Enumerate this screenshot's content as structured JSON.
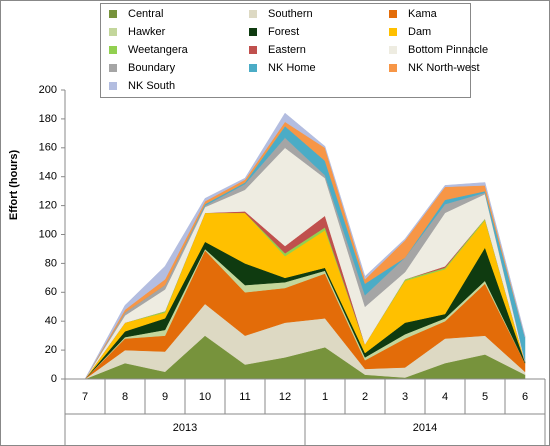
{
  "chart_data": {
    "type": "stacked_area",
    "y_label": "Effort  (hours)",
    "categories": [
      "7",
      "8",
      "9",
      "10",
      "11",
      "12",
      "1",
      "2",
      "3",
      "4",
      "5",
      "6"
    ],
    "x_groups": [
      {
        "label": "2013",
        "from": 0,
        "to": 5
      },
      {
        "label": "2014",
        "from": 6,
        "to": 11
      }
    ],
    "ylim": [
      0,
      200
    ],
    "yticks": [
      0,
      20,
      40,
      60,
      80,
      100,
      120,
      140,
      160,
      180,
      200
    ],
    "series": [
      {
        "name": "Central",
        "color": "#77933c",
        "values": [
          0,
          11,
          5,
          30,
          10,
          15,
          22,
          3,
          1,
          11,
          17,
          3
        ]
      },
      {
        "name": "Southern",
        "color": "#ddd9c3",
        "values": [
          0,
          9,
          14,
          22,
          20,
          24,
          20,
          4,
          7,
          17,
          13,
          2
        ]
      },
      {
        "name": "Kama",
        "color": "#e36c09",
        "values": [
          0,
          8,
          11,
          37,
          30,
          24,
          31,
          6,
          20,
          12,
          36,
          6
        ]
      },
      {
        "name": "Hawker",
        "color": "#c3d69b",
        "values": [
          0,
          1,
          4,
          1,
          5,
          4,
          2,
          2,
          3,
          2,
          2,
          0
        ]
      },
      {
        "name": "Forest",
        "color": "#0f3b10",
        "values": [
          0,
          4,
          8,
          5,
          15,
          3,
          2,
          3,
          8,
          3,
          23,
          1
        ]
      },
      {
        "name": "Dam",
        "color": "#ffc000",
        "values": [
          0,
          6,
          4,
          20,
          35,
          15,
          26,
          6,
          29,
          31,
          19,
          0
        ]
      },
      {
        "name": "Weetangera",
        "color": "#92d050",
        "values": [
          0,
          0,
          1,
          0,
          0,
          2,
          2,
          0,
          1,
          1,
          1,
          0
        ]
      },
      {
        "name": "Eastern",
        "color": "#c0504d",
        "values": [
          0,
          0,
          0,
          0,
          1,
          5,
          8,
          0,
          0,
          1,
          0,
          0
        ]
      },
      {
        "name": "Bottom Pinnacle",
        "color": "#eeece1",
        "values": [
          0,
          5,
          15,
          4,
          15,
          68,
          26,
          26,
          5,
          37,
          17,
          0
        ]
      },
      {
        "name": "Boundary",
        "color": "#a5a5a5",
        "values": [
          0,
          2,
          3,
          1,
          4,
          7,
          2,
          8,
          10,
          6,
          1,
          1
        ]
      },
      {
        "name": "NK Home",
        "color": "#4bacc6",
        "values": [
          0,
          0,
          0,
          1,
          1,
          8,
          10,
          8,
          0,
          3,
          1,
          16
        ]
      },
      {
        "name": "NK North-west",
        "color": "#f79646",
        "values": [
          0,
          2,
          4,
          2,
          2,
          3,
          9,
          3,
          12,
          9,
          4,
          0
        ]
      },
      {
        "name": "NK South",
        "color": "#b3bde0",
        "values": [
          0,
          3,
          9,
          2,
          1,
          6,
          1,
          2,
          1,
          1,
          2,
          1
        ]
      }
    ]
  }
}
